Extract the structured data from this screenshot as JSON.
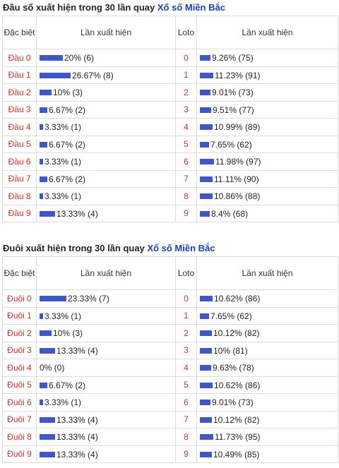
{
  "colors": {
    "bar": "#3f57c9",
    "label_red": "#d0312d",
    "link_blue": "#1a3fb8"
  },
  "head": {
    "title_prefix": "Đầu số xuất hiện trong 30 lần quay ",
    "title_link": "Xổ số Miền Bắc",
    "col1": "Đặc biệt",
    "col2": "Lần xuất hiện",
    "col3": "Loto",
    "col4": "Lần xuất hiện",
    "rows": [
      {
        "label": "Đầu 0",
        "sp_pct": 20,
        "sp_text": "20% (6)",
        "loto": "0",
        "lo_pct": 9.26,
        "lo_text": "9.26% (75)"
      },
      {
        "label": "Đầu 1",
        "sp_pct": 26.67,
        "sp_text": "26.67% (8)",
        "loto": "1",
        "lo_pct": 11.23,
        "lo_text": "11.23% (91)"
      },
      {
        "label": "Đầu 2",
        "sp_pct": 10,
        "sp_text": "10% (3)",
        "loto": "2",
        "lo_pct": 9.01,
        "lo_text": "9.01% (73)"
      },
      {
        "label": "Đầu 3",
        "sp_pct": 6.67,
        "sp_text": "6.67% (2)",
        "loto": "3",
        "lo_pct": 9.51,
        "lo_text": "9.51% (77)"
      },
      {
        "label": "Đầu 4",
        "sp_pct": 3.33,
        "sp_text": "3.33% (1)",
        "loto": "4",
        "lo_pct": 10.99,
        "lo_text": "10.99% (89)"
      },
      {
        "label": "Đầu 5",
        "sp_pct": 6.67,
        "sp_text": "6.67% (2)",
        "loto": "5",
        "lo_pct": 7.65,
        "lo_text": "7.65% (62)"
      },
      {
        "label": "Đầu 6",
        "sp_pct": 3.33,
        "sp_text": "3.33% (1)",
        "loto": "6",
        "lo_pct": 11.98,
        "lo_text": "11.98% (97)"
      },
      {
        "label": "Đầu 7",
        "sp_pct": 6.67,
        "sp_text": "6.67% (2)",
        "loto": "7",
        "lo_pct": 11.11,
        "lo_text": "11.11% (90)"
      },
      {
        "label": "Đầu 8",
        "sp_pct": 3.33,
        "sp_text": "3.33% (1)",
        "loto": "8",
        "lo_pct": 10.86,
        "lo_text": "10.86% (88)"
      },
      {
        "label": "Đầu 9",
        "sp_pct": 13.33,
        "sp_text": "13.33% (4)",
        "loto": "9",
        "lo_pct": 8.4,
        "lo_text": "8.4% (68)"
      }
    ]
  },
  "tail": {
    "title_prefix": "Đuôi xuất hiện trong 30 lần quay ",
    "title_link": "Xổ số Miền Bắc",
    "col1": "Đặc biệt",
    "col2": "Lần xuất hiện",
    "col3": "Loto",
    "col4": "Lần xuất hiện",
    "rows": [
      {
        "label": "Đuôi 0",
        "sp_pct": 23.33,
        "sp_text": "23.33% (7)",
        "loto": "0",
        "lo_pct": 10.62,
        "lo_text": "10.62% (86)"
      },
      {
        "label": "Đuôi 1",
        "sp_pct": 3.33,
        "sp_text": "3.33% (1)",
        "loto": "1",
        "lo_pct": 7.65,
        "lo_text": "7.65% (62)"
      },
      {
        "label": "Đuôi 2",
        "sp_pct": 10,
        "sp_text": "10% (3)",
        "loto": "2",
        "lo_pct": 10.12,
        "lo_text": "10.12% (82)"
      },
      {
        "label": "Đuôi 3",
        "sp_pct": 13.33,
        "sp_text": "13.33% (4)",
        "loto": "3",
        "lo_pct": 10,
        "lo_text": "10% (81)"
      },
      {
        "label": "Đuôi 4",
        "sp_pct": 0,
        "sp_text": "0% (0)",
        "loto": "4",
        "lo_pct": 9.63,
        "lo_text": "9.63% (78)"
      },
      {
        "label": "Đuôi 5",
        "sp_pct": 6.67,
        "sp_text": "6.67% (2)",
        "loto": "5",
        "lo_pct": 10.62,
        "lo_text": "10.62% (86)"
      },
      {
        "label": "Đuôi 6",
        "sp_pct": 3.33,
        "sp_text": "3.33% (1)",
        "loto": "6",
        "lo_pct": 9.01,
        "lo_text": "9.01% (73)"
      },
      {
        "label": "Đuôi 7",
        "sp_pct": 13.33,
        "sp_text": "13.33% (4)",
        "loto": "7",
        "lo_pct": 10.12,
        "lo_text": "10.12% (82)"
      },
      {
        "label": "Đuôi 8",
        "sp_pct": 13.33,
        "sp_text": "13.33% (4)",
        "loto": "8",
        "lo_pct": 11.73,
        "lo_text": "11.73% (95)"
      },
      {
        "label": "Đuôi 9",
        "sp_pct": 13.33,
        "sp_text": "13.33% (4)",
        "loto": "9",
        "lo_pct": 10.49,
        "lo_text": "10.49% (85)"
      }
    ]
  }
}
